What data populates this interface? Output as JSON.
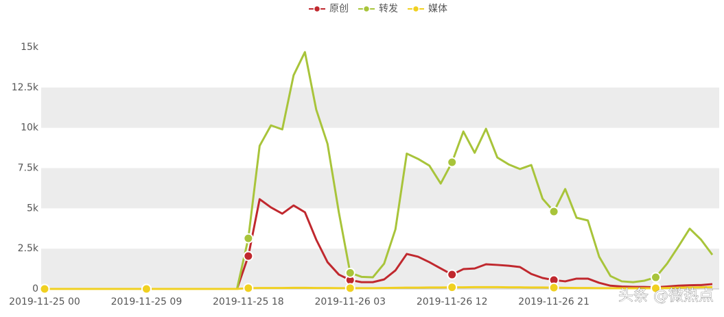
{
  "chart_data": {
    "type": "line",
    "categories": [
      "2019-11-25 00",
      null,
      null,
      null,
      null,
      null,
      null,
      null,
      null,
      "2019-11-25 09",
      null,
      null,
      null,
      null,
      null,
      null,
      null,
      null,
      "2019-11-25 18",
      null,
      null,
      null,
      null,
      null,
      null,
      null,
      null,
      "2019-11-26 03",
      null,
      null,
      null,
      null,
      null,
      null,
      null,
      null,
      "2019-11-26 12",
      null,
      null,
      null,
      null,
      null,
      null,
      null,
      null,
      "2019-11-26 21",
      null,
      null,
      null,
      null,
      null,
      null,
      null,
      null,
      null,
      null,
      null,
      null,
      null,
      null
    ],
    "series": [
      {
        "name": "原创",
        "color": "#c0282e",
        "values": [
          0,
          0,
          0,
          0,
          0,
          0,
          0,
          0,
          0,
          0,
          0,
          0,
          0,
          0,
          0,
          0,
          0,
          0,
          2040,
          5570,
          5060,
          4670,
          5180,
          4760,
          3060,
          1660,
          890,
          550,
          420,
          420,
          590,
          1150,
          2170,
          2000,
          1660,
          1270,
          890,
          1230,
          1270,
          1530,
          1490,
          1440,
          1360,
          930,
          680,
          550,
          470,
          640,
          640,
          380,
          200,
          150,
          130,
          120,
          100,
          150,
          200,
          230,
          240,
          300
        ]
      },
      {
        "name": "转发",
        "color": "#a8c43a",
        "values": [
          0,
          0,
          0,
          0,
          0,
          0,
          0,
          0,
          0,
          0,
          0,
          0,
          0,
          0,
          0,
          0,
          0,
          0,
          3140,
          8880,
          10150,
          9900,
          13260,
          14700,
          11130,
          9000,
          4750,
          1000,
          750,
          720,
          1570,
          3700,
          8400,
          8070,
          7650,
          6540,
          7860,
          9770,
          8450,
          9940,
          8160,
          7730,
          7440,
          7690,
          5600,
          4800,
          6200,
          4420,
          4250,
          2000,
          800,
          470,
          420,
          510,
          720,
          1570,
          2630,
          3740,
          3060,
          2120
        ]
      },
      {
        "name": "媒体",
        "color": "#f0d020",
        "values": [
          0,
          0,
          0,
          0,
          0,
          0,
          0,
          0,
          0,
          0,
          0,
          0,
          0,
          0,
          0,
          0,
          0,
          0,
          50,
          60,
          60,
          60,
          70,
          70,
          60,
          60,
          50,
          50,
          50,
          50,
          60,
          70,
          80,
          80,
          90,
          90,
          100,
          100,
          110,
          110,
          110,
          100,
          100,
          90,
          90,
          80,
          70,
          60,
          60,
          50,
          50,
          40,
          40,
          40,
          40,
          60,
          80,
          90,
          100,
          110
        ]
      }
    ],
    "ylim": [
      0,
      15000
    ],
    "yticks": [
      0,
      {
        "value": 2500,
        "label": "2.5k"
      },
      {
        "value": 5000,
        "label": "5k"
      },
      {
        "value": 7500,
        "label": "7.5k"
      },
      {
        "value": 10000,
        "label": "10k"
      },
      {
        "value": 12500,
        "label": "12.5k"
      },
      {
        "value": 15000,
        "label": "15k"
      }
    ],
    "grid": true,
    "legend": "top",
    "watermark": "头条 @微热点"
  }
}
